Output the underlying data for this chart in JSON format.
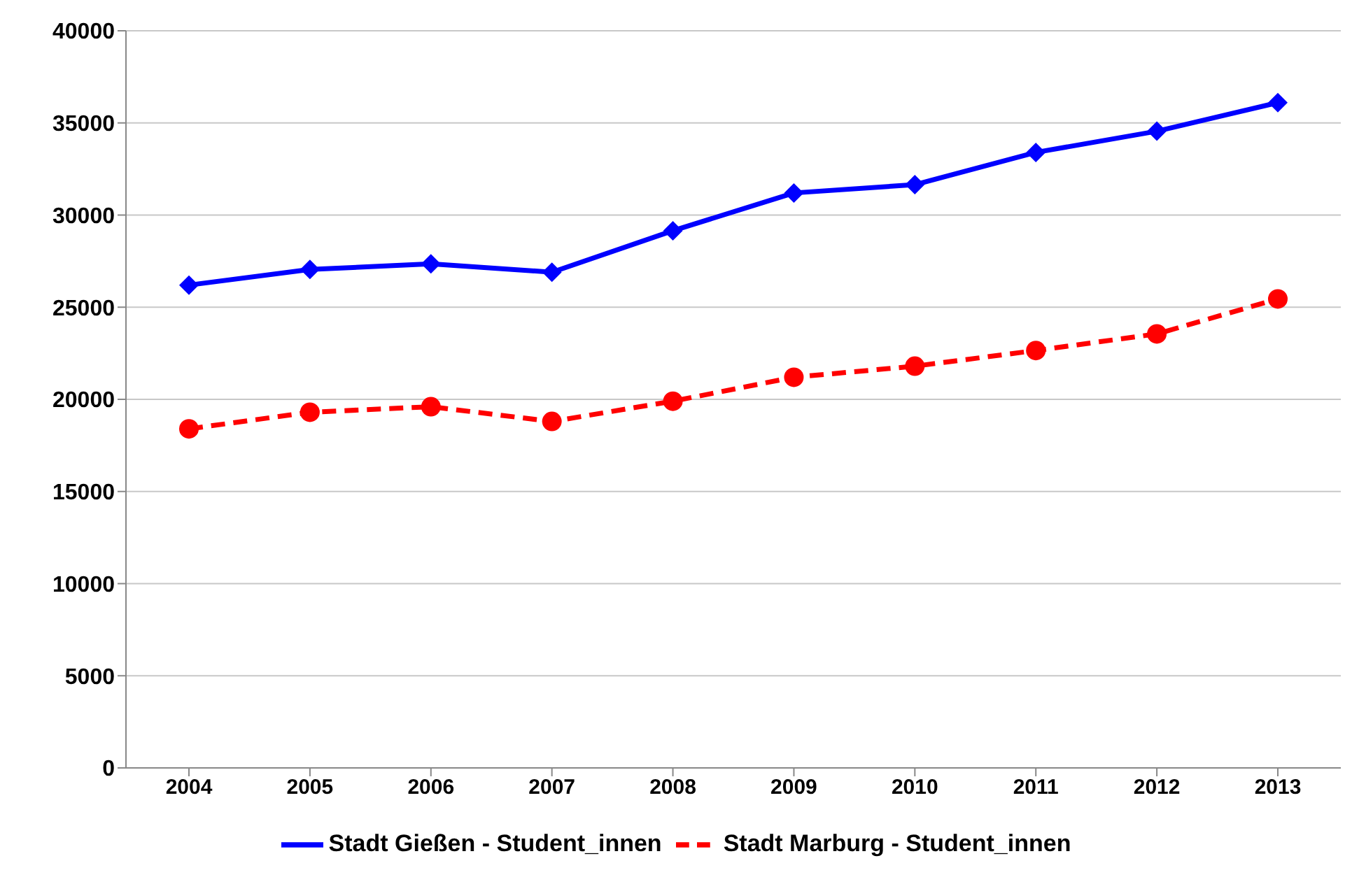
{
  "chart_data": {
    "type": "line",
    "categories": [
      "2004",
      "2005",
      "2006",
      "2007",
      "2008",
      "2009",
      "2010",
      "2011",
      "2012",
      "2013"
    ],
    "series": [
      {
        "name": "Stadt Gießen - Student_innen",
        "color": "#0000ff",
        "marker": "diamond",
        "line_style": "solid",
        "values": [
          26200,
          27050,
          27350,
          26900,
          29150,
          31200,
          31650,
          33400,
          34550,
          36100
        ]
      },
      {
        "name": "Stadt Marburg - Student_innen",
        "color": "#ff0000",
        "marker": "circle",
        "line_style": "dashed",
        "values": [
          18400,
          19300,
          19600,
          18800,
          19900,
          21200,
          21800,
          22650,
          23550,
          25450
        ]
      }
    ],
    "ylim": [
      0,
      40000
    ],
    "yticks": [
      0,
      5000,
      10000,
      15000,
      20000,
      25000,
      30000,
      35000,
      40000
    ],
    "grid": "y",
    "legend": "bottom"
  }
}
